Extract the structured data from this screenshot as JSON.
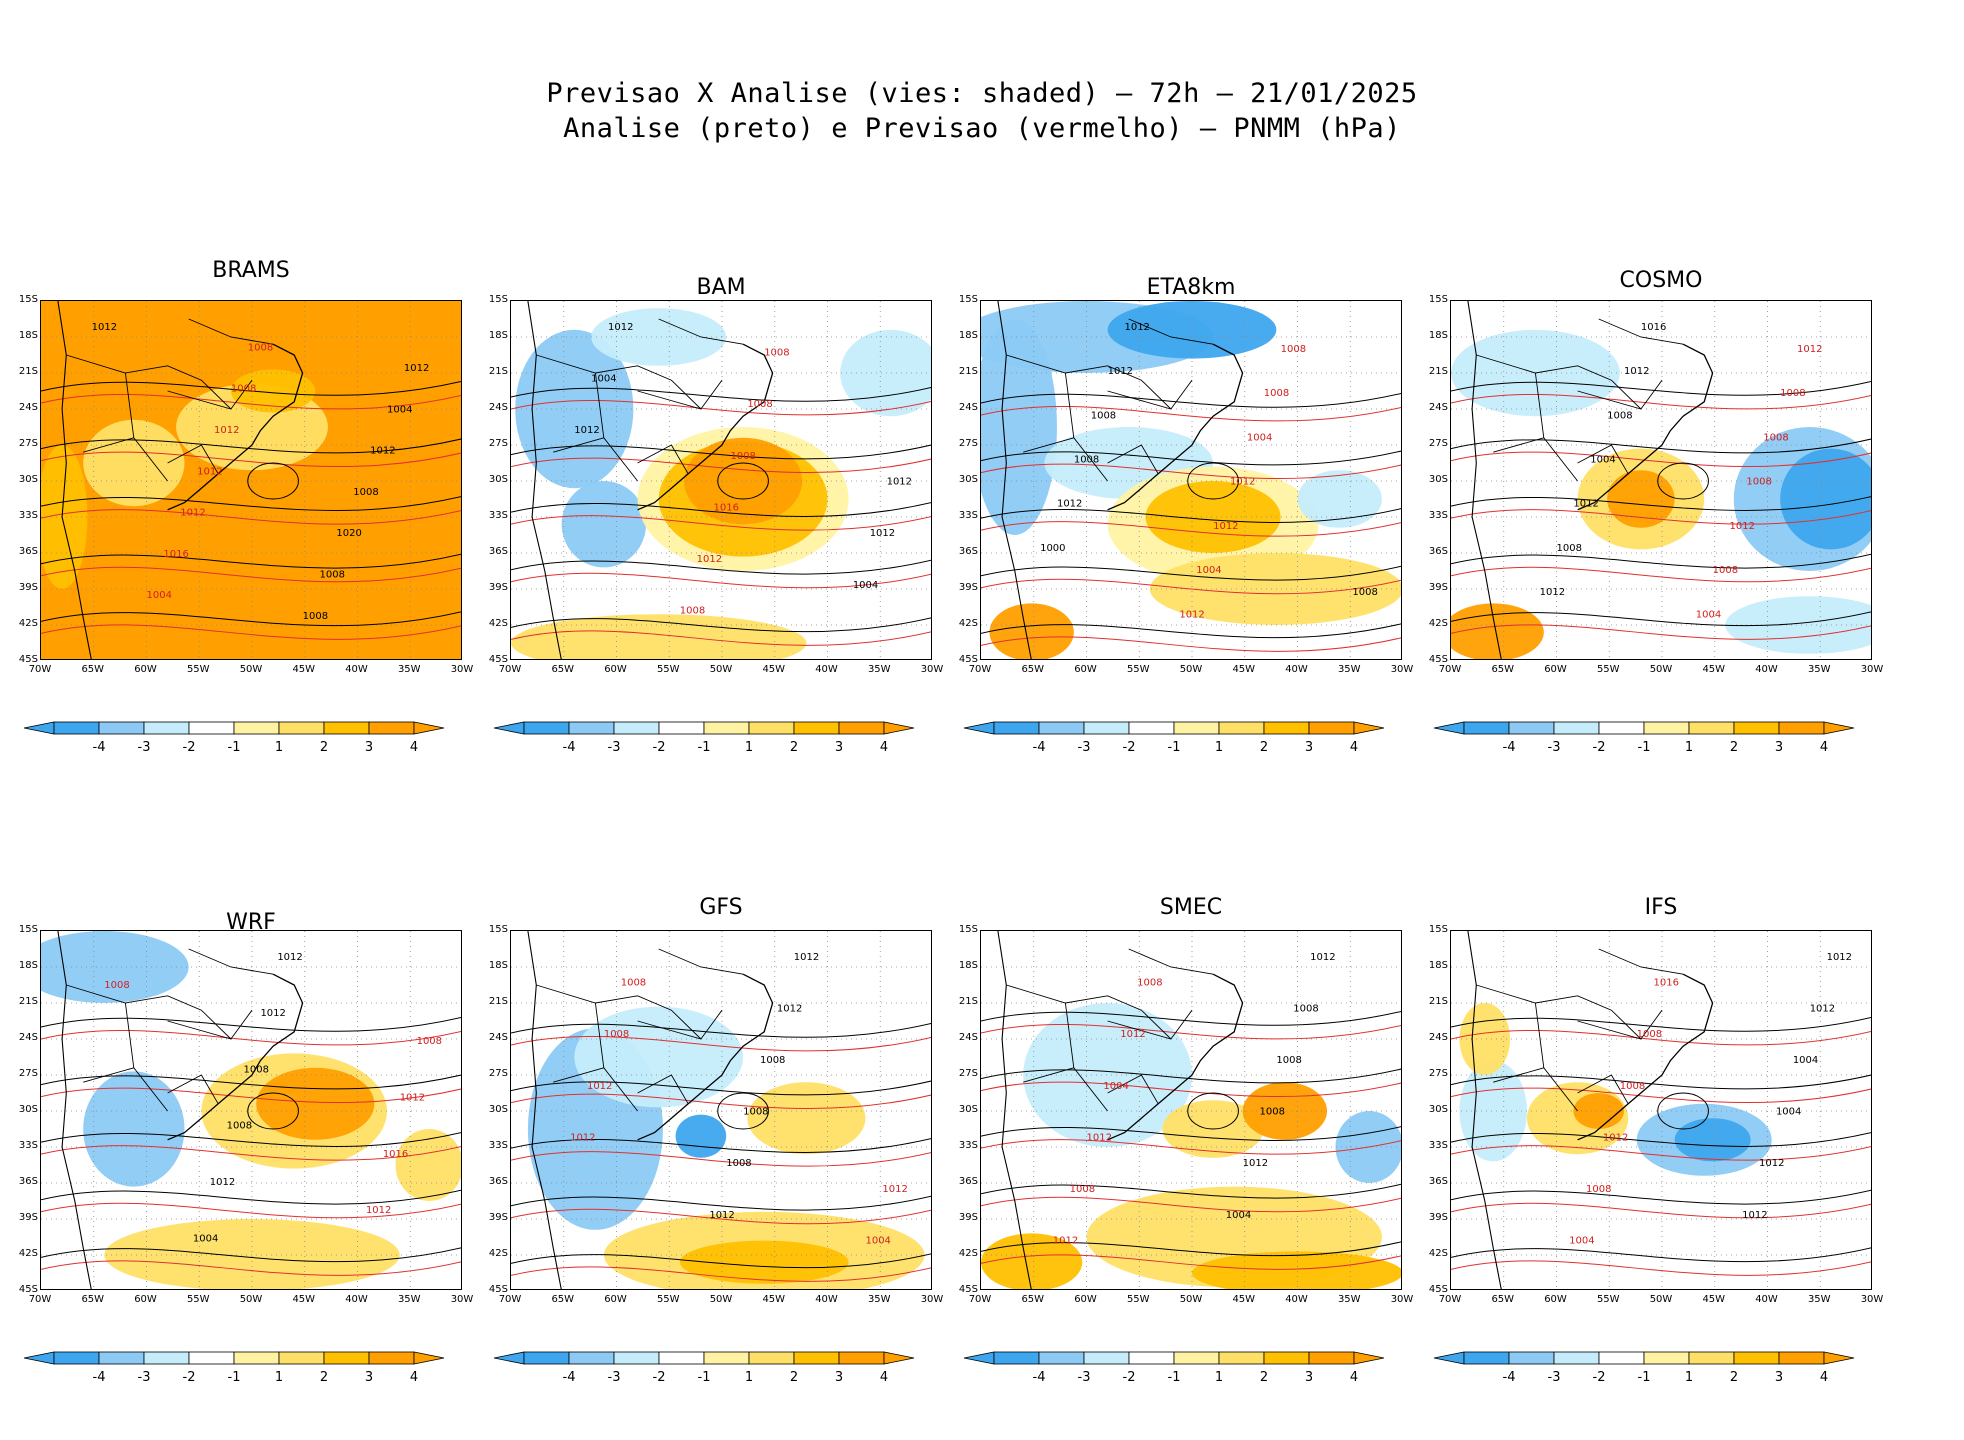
{
  "figure": {
    "title_line1": "Previsao X Analise (vies: shaded) – 72h – 21/01/2025",
    "title_line2": "Analise (preto) e Previsao (vermelho) – PNMM (hPa)"
  },
  "axes": {
    "lat_labels": [
      "15S",
      "18S",
      "21S",
      "24S",
      "27S",
      "30S",
      "33S",
      "36S",
      "39S",
      "42S",
      "45S"
    ],
    "lon_labels": [
      "70W",
      "65W",
      "60W",
      "55W",
      "50W",
      "45W",
      "40W",
      "35W",
      "30W"
    ]
  },
  "colorbar": {
    "labels": [
      "-4",
      "-3",
      "-2",
      "-1",
      "1",
      "2",
      "3",
      "4"
    ],
    "colors": [
      "#3ea6ee",
      "#8ccaf5",
      "#c5ecfb",
      "#ffffff",
      "#fff3a3",
      "#ffe066",
      "#ffc000",
      "#ff9f00"
    ]
  },
  "chart_data": {
    "type": "map",
    "variable": "PNMM (hPa) bias",
    "panels": [
      {
        "model": "BRAMS",
        "isobars": [
          "1012",
          "1008",
          "1012",
          "1008",
          "1004",
          "1012",
          "1012",
          "1012",
          "1008",
          "1012",
          "1020",
          "1016",
          "1008",
          "1004",
          "1008"
        ]
      },
      {
        "model": "BAM",
        "isobars": [
          "1012",
          "1008",
          "1004",
          "1008",
          "1012",
          "1008",
          "1012",
          "1016",
          "1012",
          "1012",
          "1004",
          "1008"
        ]
      },
      {
        "model": "ETA8km",
        "isobars": [
          "1012",
          "1008",
          "1012",
          "1008",
          "1008",
          "1004",
          "1008",
          "1012",
          "1012",
          "1012",
          "1000",
          "1004",
          "1008",
          "1012"
        ]
      },
      {
        "model": "COSMO",
        "isobars": [
          "1016",
          "1012",
          "1012",
          "1008",
          "1008",
          "1008",
          "1004",
          "1008",
          "1012",
          "1012",
          "1008",
          "1008",
          "1012",
          "1004"
        ]
      },
      {
        "model": "WRF",
        "isobars": [
          "1012",
          "1008",
          "1012",
          "1008",
          "1008",
          "1012",
          "1008",
          "1016",
          "1012",
          "1012",
          "1004"
        ]
      },
      {
        "model": "GFS",
        "isobars": [
          "1012",
          "1008",
          "1012",
          "1008",
          "1008",
          "1012",
          "1008",
          "1012",
          "1008",
          "1012",
          "1012",
          "1004"
        ]
      },
      {
        "model": "SMEC",
        "isobars": [
          "1012",
          "1008",
          "1008",
          "1012",
          "1008",
          "1004",
          "1008",
          "1012",
          "1012",
          "1008",
          "1004",
          "1012"
        ]
      },
      {
        "model": "IFS",
        "isobars": [
          "1012",
          "1016",
          "1012",
          "1008",
          "1004",
          "1008",
          "1004",
          "1012",
          "1012",
          "1008",
          "1012",
          "1004"
        ]
      }
    ]
  }
}
